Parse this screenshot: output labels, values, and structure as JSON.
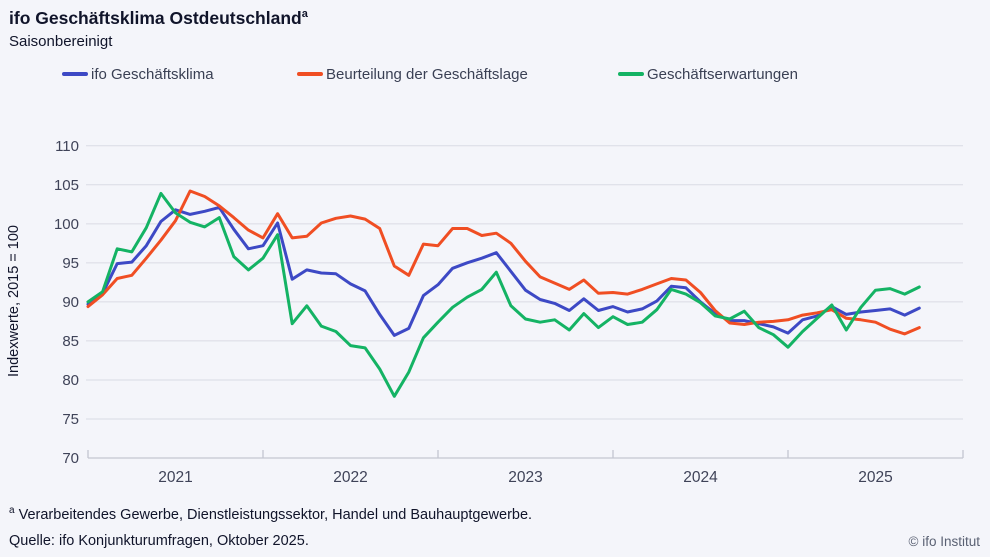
{
  "header": {
    "title": "ifo Geschäftsklima Ostdeutschland",
    "title_sup": "a",
    "subtitle": "Saisonbereinigt"
  },
  "legend": [
    {
      "label": "ifo Geschäftsklima",
      "color": "#3d49c5"
    },
    {
      "label": "Beurteilung der Geschäftslage",
      "color": "#f04e23"
    },
    {
      "label": "Geschäftserwartungen",
      "color": "#14b364"
    }
  ],
  "chart_data": {
    "type": "line",
    "title": "ifo Geschäftsklima Ostdeutschland",
    "ylabel": "Indexwerte, 2015 = 100",
    "ylim": [
      70,
      110
    ],
    "y_ticks": [
      70,
      75,
      80,
      85,
      90,
      95,
      100,
      105,
      110
    ],
    "grid": "horizontal",
    "x_unit": "month",
    "x_start": "2021-01",
    "x_end": "2025-10",
    "x_year_labels": [
      "2021",
      "2022",
      "2023",
      "2024",
      "2025"
    ],
    "series": [
      {
        "name": "ifo Geschäftsklima",
        "color": "#3d49c5",
        "values": [
          89.7,
          91.1,
          94.9,
          95.1,
          97.2,
          100.3,
          101.8,
          101.2,
          101.6,
          102.1,
          99.3,
          96.8,
          97.2,
          100.1,
          92.9,
          94.1,
          93.7,
          93.6,
          92.3,
          91.4,
          88.4,
          85.7,
          86.6,
          90.8,
          92.2,
          94.3,
          95.0,
          95.6,
          96.3,
          93.9,
          91.5,
          90.3,
          89.8,
          88.9,
          90.4,
          88.9,
          89.4,
          88.7,
          89.1,
          90.1,
          92.0,
          91.8,
          90.0,
          88.5,
          87.6,
          87.6,
          87.2,
          86.8,
          86.0,
          87.7,
          88.2,
          89.4,
          88.4,
          88.7,
          88.9,
          89.1,
          88.3,
          89.2
        ]
      },
      {
        "name": "Beurteilung der Geschäftslage",
        "color": "#f04e23",
        "values": [
          89.4,
          90.9,
          93.0,
          93.4,
          95.6,
          97.9,
          100.4,
          104.2,
          103.5,
          102.3,
          100.8,
          99.2,
          98.2,
          101.3,
          98.2,
          98.4,
          100.1,
          100.7,
          101.0,
          100.6,
          99.4,
          94.6,
          93.4,
          97.4,
          97.2,
          99.4,
          99.4,
          98.5,
          98.8,
          97.5,
          95.2,
          93.2,
          92.4,
          91.6,
          92.8,
          91.1,
          91.2,
          91.0,
          91.6,
          92.3,
          93.0,
          92.8,
          91.2,
          88.9,
          87.3,
          87.1,
          87.4,
          87.5,
          87.7,
          88.3,
          88.6,
          89.0,
          87.9,
          87.7,
          87.4,
          86.5,
          85.9,
          86.7
        ]
      },
      {
        "name": "Geschäftserwartungen",
        "color": "#14b364",
        "values": [
          90.0,
          91.3,
          96.8,
          96.4,
          99.5,
          103.9,
          101.4,
          100.2,
          99.6,
          100.8,
          95.8,
          94.1,
          95.6,
          98.6,
          87.2,
          89.5,
          86.9,
          86.2,
          84.4,
          84.1,
          81.4,
          77.9,
          81.0,
          85.4,
          87.4,
          89.3,
          90.6,
          91.6,
          93.8,
          89.5,
          87.8,
          87.4,
          87.7,
          86.4,
          88.5,
          86.7,
          88.1,
          87.1,
          87.4,
          89.0,
          91.6,
          91.0,
          89.9,
          88.2,
          87.8,
          88.8,
          86.7,
          85.8,
          84.2,
          86.2,
          87.9,
          89.6,
          86.4,
          89.3,
          91.5,
          91.7,
          91.0,
          91.9
        ]
      }
    ]
  },
  "footer": {
    "footnote_sup": "a",
    "footnote": "Verarbeitendes Gewerbe, Dienstleistungssektor, Handel und Bauhauptgewerbe.",
    "source": "Quelle: ifo Konjunkturumfragen, Oktober 2025.",
    "copyright": "© ifo Institut"
  },
  "colors": {
    "background": "#f4f5fa",
    "gridline": "#d9dbe4",
    "axis": "#c3c6d1",
    "tick_text": "#3f4358"
  }
}
